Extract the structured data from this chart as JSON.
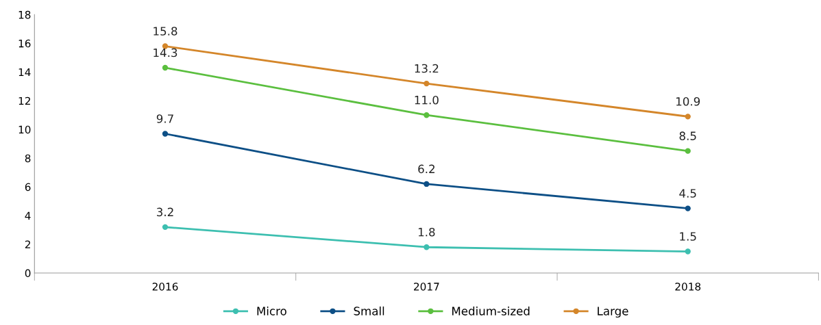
{
  "chart_data": {
    "type": "line",
    "categories": [
      "2016",
      "2017",
      "2018"
    ],
    "series": [
      {
        "name": "Micro",
        "color": "#3dbfb0",
        "values": [
          3.2,
          1.8,
          1.5
        ],
        "value_labels": [
          "3.2",
          "1.8",
          "1.5"
        ]
      },
      {
        "name": "Small",
        "color": "#0d4f86",
        "values": [
          9.7,
          6.2,
          4.5
        ],
        "value_labels": [
          "9.7",
          "6.2",
          "4.5"
        ]
      },
      {
        "name": "Medium-sized",
        "color": "#5bbf3f",
        "values": [
          14.3,
          11.0,
          8.5
        ],
        "value_labels": [
          "14.3",
          "11.0",
          "8.5"
        ]
      },
      {
        "name": "Large",
        "color": "#d4862a",
        "values": [
          15.8,
          13.2,
          10.9
        ],
        "value_labels": [
          "15.8",
          "13.2",
          "10.9"
        ]
      }
    ],
    "ylim": [
      0,
      18
    ],
    "yticks": [
      0,
      2,
      4,
      6,
      8,
      10,
      12,
      14,
      16,
      18
    ],
    "marker": "circle",
    "line_style": "solid",
    "grid": false,
    "legend": "bottom"
  }
}
